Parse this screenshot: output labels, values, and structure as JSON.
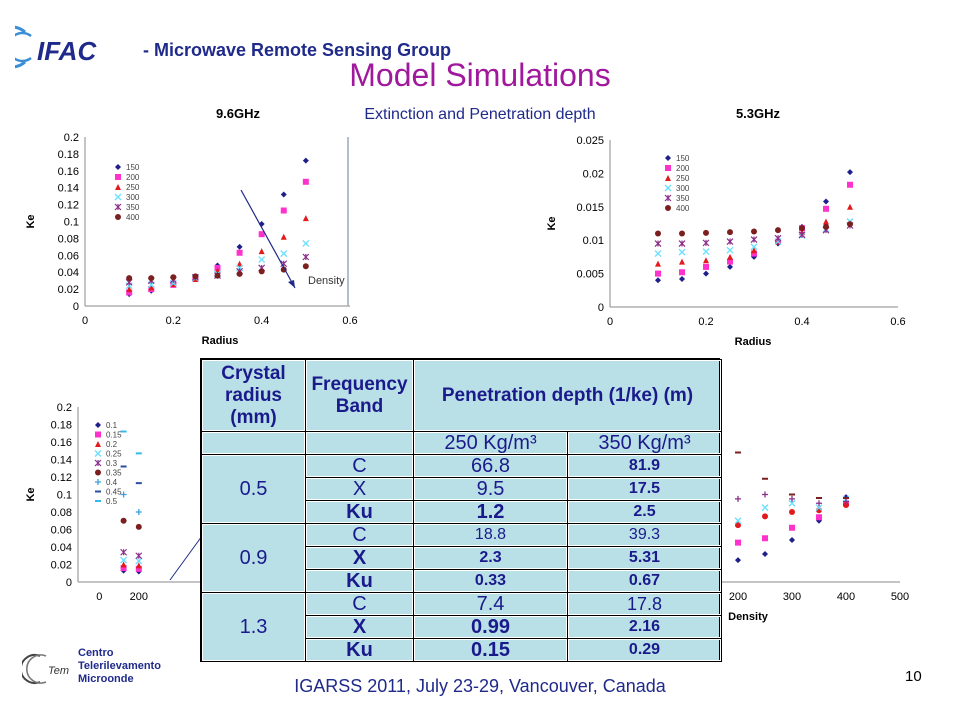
{
  "header": {
    "org_title": "-  Microwave Remote Sensing Group",
    "logo_text": "IFAC"
  },
  "slide": {
    "title": "Model Simulations",
    "subtitle": "Extinction and Penetration depth"
  },
  "footer": {
    "conference": "IGARSS 2011, July 23-29, Vancouver, Canada",
    "page_number": "10",
    "cetem_lines": [
      "Centro",
      "Telerilevamento",
      "Microonde"
    ]
  },
  "colors": {
    "series": [
      "#1f1f8c",
      "#ff33cc",
      "#e31a1c",
      "#66e0ff",
      "#8b2f8b",
      "#7b1f1f",
      "#3aa0e0",
      "#2a4f9f",
      "#33bbee"
    ],
    "title": "#a0189c",
    "text": "#1f2a8a",
    "table_bg": "#b9e0e6"
  },
  "table": {
    "headers": {
      "radius": "Crystal radius (mm)",
      "band": "Frequency Band",
      "depth": "Penetration depth (1/ke) (m)"
    },
    "density_headers": [
      "250  Kg/m³",
      "350  Kg/m³"
    ],
    "groups": [
      {
        "radius": "0.5",
        "rows": [
          {
            "band": "C",
            "d250": "66.8",
            "d350": "81.9"
          },
          {
            "band": "X",
            "d250": "9.5",
            "d350": "17.5"
          },
          {
            "band": "Ku",
            "d250": "1.2",
            "d350": "2.5"
          }
        ]
      },
      {
        "radius": "0.9",
        "rows": [
          {
            "band": "C",
            "d250": "18.8",
            "d350": "39.3"
          },
          {
            "band": "X",
            "d250": "2.3",
            "d350": "5.31"
          },
          {
            "band": "Ku",
            "d250": "0.33",
            "d350": "0.67"
          }
        ]
      },
      {
        "radius": "1.3",
        "rows": [
          {
            "band": "C",
            "d250": "7.4",
            "d350": "17.8"
          },
          {
            "band": "X",
            "d250": "0.99",
            "d350": "2.16"
          },
          {
            "band": "Ku",
            "d250": "0.15",
            "d350": "0.29"
          }
        ]
      }
    ]
  },
  "chart_data": [
    {
      "type": "scatter",
      "title": "9.6GHz",
      "xlabel": "Radius",
      "ylabel": "Ke",
      "xlim": [
        0,
        0.6
      ],
      "ylim": [
        0,
        0.2
      ],
      "xticks": [
        "0",
        "0.2",
        "0.4",
        "0.6"
      ],
      "yticks": [
        "0",
        "0.02",
        "0.04",
        "0.06",
        "0.08",
        "0.1",
        "0.12",
        "0.14",
        "0.16",
        "0.18",
        "0.2"
      ],
      "legend_position": "top-left",
      "annotation": "Density",
      "x": [
        0.1,
        0.15,
        0.2,
        0.25,
        0.3,
        0.35,
        0.4,
        0.45,
        0.5
      ],
      "series": [
        {
          "name": "150",
          "marker": "diamond",
          "values": [
            0.014,
            0.018,
            0.025,
            0.032,
            0.048,
            0.07,
            0.097,
            0.132,
            0.172
          ]
        },
        {
          "name": "200",
          "marker": "square",
          "values": [
            0.016,
            0.02,
            0.025,
            0.032,
            0.045,
            0.063,
            0.085,
            0.113,
            0.147
          ]
        },
        {
          "name": "250",
          "marker": "triangle",
          "values": [
            0.02,
            0.022,
            0.026,
            0.032,
            0.042,
            0.05,
            0.065,
            0.082,
            0.104
          ]
        },
        {
          "name": "300",
          "marker": "x",
          "values": [
            0.024,
            0.025,
            0.027,
            0.033,
            0.038,
            0.045,
            0.055,
            0.062,
            0.074
          ]
        },
        {
          "name": "350",
          "marker": "star",
          "values": [
            0.028,
            0.03,
            0.031,
            0.034,
            0.036,
            0.041,
            0.045,
            0.05,
            0.058
          ]
        },
        {
          "name": "400",
          "marker": "circle",
          "values": [
            0.033,
            0.033,
            0.034,
            0.035,
            0.036,
            0.038,
            0.041,
            0.043,
            0.047
          ]
        }
      ]
    },
    {
      "type": "scatter",
      "title": "5.3GHz",
      "xlabel": "Radius",
      "ylabel": "Ke",
      "xlim": [
        0,
        0.6
      ],
      "ylim": [
        0,
        0.025
      ],
      "xticks": [
        "0",
        "0.2",
        "0.4",
        "0.6"
      ],
      "yticks": [
        "0",
        "0.005",
        "0.01",
        "0.015",
        "0.02",
        "0.025"
      ],
      "legend_position": "top-left",
      "x": [
        0.1,
        0.15,
        0.2,
        0.25,
        0.3,
        0.35,
        0.4,
        0.45,
        0.5
      ],
      "series": [
        {
          "name": "150",
          "marker": "diamond",
          "values": [
            0.004,
            0.0042,
            0.005,
            0.006,
            0.0075,
            0.0095,
            0.012,
            0.0158,
            0.0202
          ]
        },
        {
          "name": "200",
          "marker": "square",
          "values": [
            0.005,
            0.0052,
            0.006,
            0.0068,
            0.008,
            0.0098,
            0.0118,
            0.0147,
            0.0183
          ]
        },
        {
          "name": "250",
          "marker": "triangle",
          "values": [
            0.0065,
            0.0068,
            0.007,
            0.0075,
            0.0085,
            0.0098,
            0.0112,
            0.0128,
            0.015
          ]
        },
        {
          "name": "300",
          "marker": "x",
          "values": [
            0.008,
            0.0082,
            0.0083,
            0.0085,
            0.009,
            0.0098,
            0.0107,
            0.0117,
            0.0128
          ]
        },
        {
          "name": "350",
          "marker": "star",
          "values": [
            0.0095,
            0.0095,
            0.0096,
            0.0098,
            0.0101,
            0.0103,
            0.0108,
            0.0115,
            0.0122
          ]
        },
        {
          "name": "400",
          "marker": "circle",
          "values": [
            0.011,
            0.011,
            0.0111,
            0.0112,
            0.0113,
            0.0115,
            0.0118,
            0.012,
            0.0124
          ]
        }
      ]
    },
    {
      "type": "scatter",
      "xlabel": "",
      "ylabel": "Ke",
      "xlim": [
        0,
        500
      ],
      "ylim": [
        0,
        0.2
      ],
      "xticks": [
        "0",
        "200"
      ],
      "yticks": [
        "0",
        "0.02",
        "0.04",
        "0.06",
        "0.08",
        "0.1",
        "0.12",
        "0.14",
        "0.16",
        "0.18",
        "0.2"
      ],
      "legend_position": "top-left",
      "legend": [
        "0.1",
        "0.15",
        "0.2",
        "0.25",
        "0.3",
        "0.35",
        "0.4",
        "0.45",
        "0.5"
      ],
      "x": [
        150,
        200
      ],
      "series": [
        {
          "name": "0.1",
          "marker": "diamond",
          "values": [
            0.013,
            0.012
          ]
        },
        {
          "name": "0.15",
          "marker": "square",
          "values": [
            0.016,
            0.015
          ]
        },
        {
          "name": "0.2",
          "marker": "triangle",
          "values": [
            0.02,
            0.019
          ]
        },
        {
          "name": "0.25",
          "marker": "x",
          "values": [
            0.025,
            0.024
          ]
        },
        {
          "name": "0.3",
          "marker": "star",
          "values": [
            0.034,
            0.03
          ]
        },
        {
          "name": "0.35",
          "marker": "circle",
          "values": [
            0.07,
            0.063
          ]
        },
        {
          "name": "0.4",
          "marker": "plus",
          "values": [
            0.1,
            0.08
          ]
        },
        {
          "name": "0.45",
          "marker": "dash",
          "values": [
            0.132,
            0.113
          ]
        },
        {
          "name": "0.5",
          "marker": "dash",
          "values": [
            0.172,
            0.147
          ]
        }
      ]
    },
    {
      "type": "scatter",
      "xlabel": "Density",
      "xlim": [
        0,
        500
      ],
      "ylim": [
        0,
        0.2
      ],
      "xticks": [
        "200",
        "300",
        "400",
        "500"
      ],
      "x": [
        200,
        250,
        300,
        350,
        400
      ],
      "series": [
        {
          "name": "0.1",
          "marker": "diamond",
          "values": [
            0.025,
            0.032,
            0.048,
            0.07,
            0.097
          ]
        },
        {
          "name": "0.15",
          "marker": "square",
          "values": [
            0.045,
            0.05,
            0.062,
            0.074,
            0.09
          ]
        },
        {
          "name": "0.2",
          "marker": "circle",
          "values": [
            0.065,
            0.075,
            0.08,
            0.082,
            0.088
          ]
        },
        {
          "name": "0.25",
          "marker": "x",
          "values": [
            0.07,
            0.085,
            0.09,
            0.085,
            0.095
          ]
        },
        {
          "name": "0.3",
          "marker": "plus",
          "values": [
            0.095,
            0.1,
            0.095,
            0.09,
            0.092
          ]
        },
        {
          "name": "0.35",
          "marker": "dash",
          "values": [
            0.148,
            0.118,
            0.1,
            0.096,
            0.096
          ]
        }
      ]
    }
  ]
}
